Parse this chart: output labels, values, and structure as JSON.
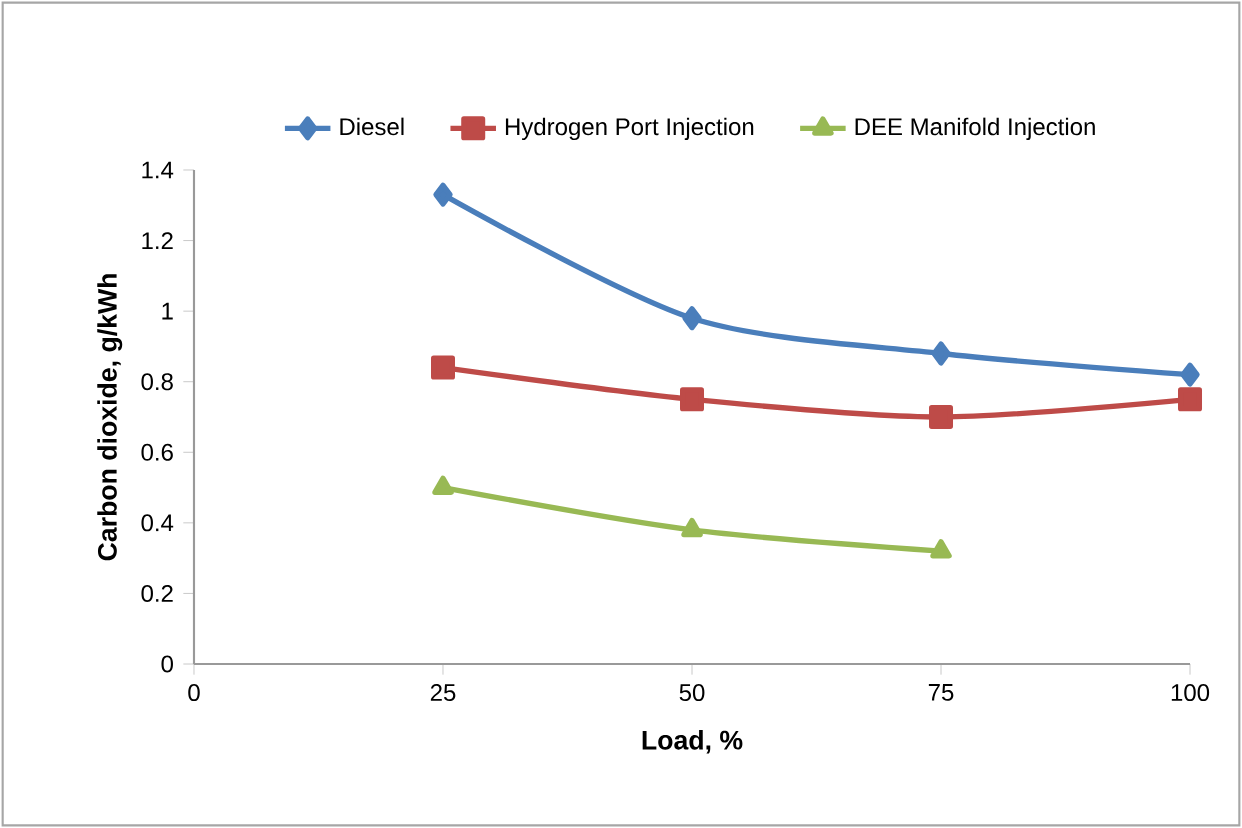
{
  "chart_data": {
    "type": "line",
    "xlabel": "Load, %",
    "ylabel": "Carbon dioxide, g/kWh",
    "x": [
      25,
      50,
      75,
      100
    ],
    "series": [
      {
        "name": "Diesel",
        "color": "#4a7ebb",
        "marker": "diamond",
        "values": [
          1.33,
          0.98,
          0.88,
          0.82
        ]
      },
      {
        "name": "Hydrogen Port Injection",
        "color": "#be4b48",
        "marker": "square",
        "values": [
          0.84,
          0.75,
          0.7,
          0.75
        ]
      },
      {
        "name": "DEE Manifold Injection",
        "color": "#98b954",
        "marker": "triangle",
        "values": [
          0.5,
          0.38,
          0.32,
          null
        ]
      }
    ],
    "xlim": [
      0,
      100
    ],
    "xticks": [
      0,
      25,
      50,
      75,
      100
    ],
    "ylim": [
      0,
      1.4
    ],
    "yticks": [
      0,
      0.2,
      0.4,
      0.6,
      0.8,
      1,
      1.2,
      1.4
    ],
    "grid": false,
    "legend": "top",
    "line_style": "solid"
  }
}
